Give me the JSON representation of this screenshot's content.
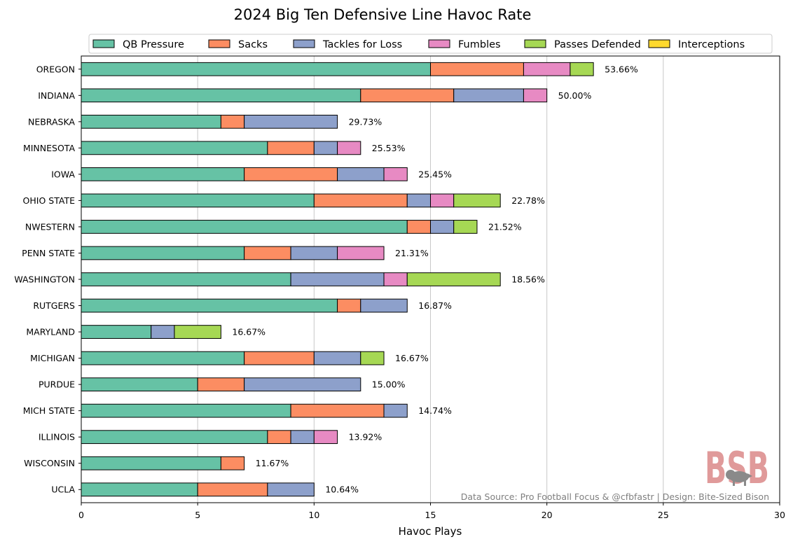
{
  "chart_data": {
    "type": "bar",
    "orientation": "horizontal",
    "stacked": true,
    "title": "2024 Big Ten Defensive Line Havoc Rate",
    "xlabel": "Havoc Plays",
    "ylabel": "",
    "xlim": [
      0,
      30
    ],
    "xticks": [
      0,
      5,
      10,
      15,
      20,
      25,
      30
    ],
    "grid": "vertical gridlines",
    "legend_position": "top",
    "categories": [
      "OREGON",
      "INDIANA",
      "NEBRASKA",
      "MINNESOTA",
      "IOWA",
      "OHIO STATE",
      "NWESTERN",
      "PENN STATE",
      "WASHINGTON",
      "RUTGERS",
      "MARYLAND",
      "MICHIGAN",
      "PURDUE",
      "MICH STATE",
      "ILLINOIS",
      "WISCONSIN",
      "UCLA"
    ],
    "series": [
      {
        "name": "QB Pressure",
        "color": "#66c2a5",
        "values": [
          15,
          12,
          6,
          8,
          7,
          10,
          14,
          7,
          9,
          11,
          3,
          7,
          5,
          9,
          8,
          6,
          5
        ]
      },
      {
        "name": "Sacks",
        "color": "#fc8d62",
        "values": [
          4,
          4,
          1,
          2,
          4,
          4,
          1,
          2,
          0,
          1,
          0,
          3,
          2,
          4,
          1,
          1,
          3
        ]
      },
      {
        "name": "Tackles for Loss",
        "color": "#8da0cb",
        "values": [
          0,
          3,
          4,
          1,
          2,
          1,
          1,
          2,
          4,
          2,
          1,
          2,
          5,
          1,
          1,
          0,
          2
        ]
      },
      {
        "name": "Fumbles",
        "color": "#e78ac3",
        "values": [
          2,
          1,
          0,
          1,
          1,
          1,
          0,
          2,
          1,
          0,
          0,
          0,
          0,
          0,
          1,
          0,
          0
        ]
      },
      {
        "name": "Passes Defended",
        "color": "#a6d854",
        "values": [
          1,
          0,
          0,
          0,
          0,
          2,
          1,
          0,
          4,
          0,
          2,
          1,
          0,
          0,
          0,
          0,
          0
        ]
      },
      {
        "name": "Interceptions",
        "color": "#ffd92f",
        "values": [
          0,
          0,
          0,
          0,
          0,
          0,
          0,
          0,
          0,
          0,
          0,
          0,
          0,
          0,
          0,
          0,
          0
        ]
      }
    ],
    "havoc_rate_labels": [
      "53.66%",
      "50.00%",
      "29.73%",
      "25.53%",
      "25.45%",
      "22.78%",
      "21.52%",
      "21.31%",
      "18.56%",
      "16.87%",
      "16.67%",
      "16.67%",
      "15.00%",
      "14.74%",
      "13.92%",
      "11.67%",
      "10.64%"
    ]
  },
  "credit": "Data Source: Pro Football Focus & @cfbfastr | Design: Bite-Sized Bison",
  "logo": {
    "text": "BSB",
    "color": "#e09a9a",
    "icon": "bison-icon"
  }
}
